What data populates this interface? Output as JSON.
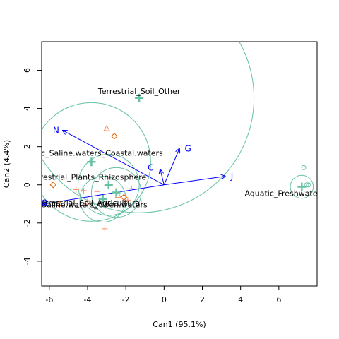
{
  "chart_data": {
    "type": "scatter",
    "xlabel": "Can1 (95.1%)",
    "ylabel": "Can2 (4.4%)",
    "xlim": [
      -6.4,
      8.0
    ],
    "ylim": [
      -5.3,
      7.5
    ],
    "x_ticks": [
      -6,
      -4,
      -2,
      0,
      2,
      4,
      6
    ],
    "y_ticks": [
      -4,
      -2,
      0,
      2,
      4,
      6
    ],
    "grid": false,
    "colors": {
      "circle": "#66c2a5",
      "centroid": "#66c2a5",
      "vector": "#0000ff",
      "obs_red": "#fc8d62",
      "obs_pink": "#e78ac3",
      "obs_dark": "#d95f02",
      "obs_teal": "#66c2a5"
    },
    "group_centroids": [
      {
        "label": "Terrestrial_Soil_Other",
        "x": -1.3,
        "y": 4.55,
        "r": 6.0
      },
      {
        "label": "Aquatic_Saline.waters_Coastal.waters",
        "x": -3.8,
        "y": 1.2,
        "r": 3.1
      },
      {
        "label": "Terrestrial_Plants_Rhizosphere",
        "x": -2.9,
        "y": 0.0,
        "r": 1.6
      },
      {
        "label": "Terrestrial_Soil_Agricultural",
        "x": -2.5,
        "y": -0.4,
        "r": 1.3
      },
      {
        "label": "Aquatic_Saline.waters_Open.waters",
        "x": -3.2,
        "y": -0.75,
        "r": 1.2
      },
      {
        "label": "Aquatic_Freshwater",
        "x": 7.2,
        "y": -0.1,
        "r": 0.6
      }
    ],
    "group_label_positions": [
      {
        "text": "Terrestrial_Soil_Other",
        "x": -1.3,
        "y": 4.9
      },
      {
        "text": "Aquatic_Saline.waters_Coastal.waters",
        "x": -3.9,
        "y": 1.65
      },
      {
        "text": "Terrestrial_Plants_Rhizosphere",
        "x": -4.0,
        "y": 0.4
      },
      {
        "text": "Terrestrial_Soil_Agricultural",
        "x": -3.9,
        "y": -0.95
      },
      {
        "text": "Aquatic_Saline.waters_Open.waters",
        "x": -4.5,
        "y": -1.05
      },
      {
        "text": "Aquatic_Freshwater",
        "x": 6.2,
        "y": -0.45
      }
    ],
    "vectors": [
      {
        "label": "N",
        "x": -5.3,
        "y": 2.85,
        "lx": -5.65,
        "ly": 2.85
      },
      {
        "label": "G",
        "x": 0.8,
        "y": 1.9,
        "lx": 1.25,
        "ly": 1.9
      },
      {
        "label": "C",
        "x": -0.2,
        "y": 0.8,
        "lx": -0.7,
        "ly": 0.9
      },
      {
        "label": "J",
        "x": 3.2,
        "y": 0.45,
        "lx": 3.55,
        "ly": 0.45
      },
      {
        "label": "O",
        "x": -6.3,
        "y": -1.0,
        "lx": -6.25,
        "ly": -0.95
      }
    ],
    "observations": [
      {
        "x": -3.0,
        "y": 2.95,
        "marker": "triangle",
        "color": "obs_red"
      },
      {
        "x": -2.6,
        "y": 2.55,
        "marker": "diamond",
        "color": "obs_dark"
      },
      {
        "x": -5.8,
        "y": 0.0,
        "marker": "diamond",
        "color": "obs_dark"
      },
      {
        "x": -4.6,
        "y": -0.25,
        "marker": "plus",
        "color": "obs_red"
      },
      {
        "x": -4.2,
        "y": -0.3,
        "marker": "plus",
        "color": "obs_red"
      },
      {
        "x": -3.5,
        "y": -0.35,
        "marker": "plus",
        "color": "obs_red"
      },
      {
        "x": -2.4,
        "y": -0.55,
        "marker": "triangle",
        "color": "obs_red"
      },
      {
        "x": -2.1,
        "y": -0.65,
        "marker": "diamond",
        "color": "obs_dark"
      },
      {
        "x": -1.9,
        "y": -0.8,
        "marker": "plus",
        "color": "obs_red"
      },
      {
        "x": -1.7,
        "y": -0.2,
        "marker": "plus",
        "color": "obs_pink"
      },
      {
        "x": -3.1,
        "y": -2.3,
        "marker": "plus",
        "color": "obs_red"
      },
      {
        "x": -4.0,
        "y": -0.9,
        "marker": "triangle",
        "color": "obs_red"
      },
      {
        "x": -5.5,
        "y": -1.0,
        "marker": "diamond",
        "color": "obs_dark"
      },
      {
        "x": 7.3,
        "y": 0.9,
        "marker": "circle",
        "color": "obs_teal"
      },
      {
        "x": 7.45,
        "y": 0.0,
        "marker": "circle",
        "color": "obs_teal"
      },
      {
        "x": 7.55,
        "y": 0.0,
        "marker": "circle",
        "color": "obs_teal"
      }
    ]
  }
}
